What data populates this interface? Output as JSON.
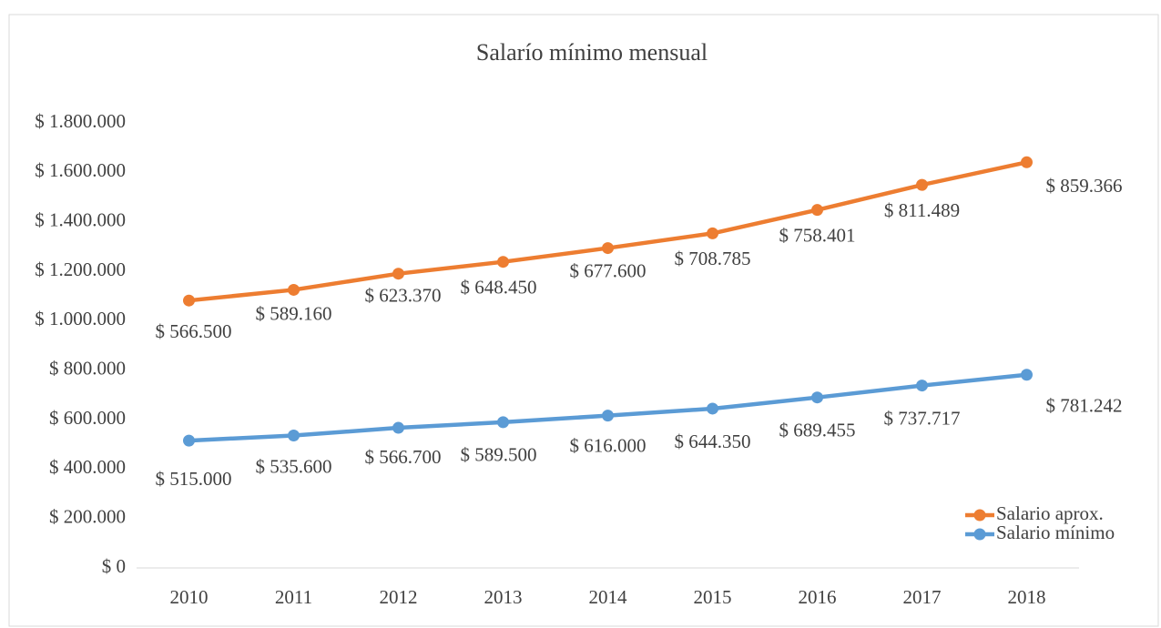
{
  "chart_data": {
    "type": "line",
    "stacked": true,
    "title": "Salarío mínimo mensual",
    "categories": [
      "2010",
      "2011",
      "2012",
      "2013",
      "2014",
      "2015",
      "2016",
      "2017",
      "2018"
    ],
    "series": [
      {
        "name": "Salario mínimo",
        "color": "#5b9bd5",
        "values": [
          515000,
          535600,
          566700,
          589500,
          616000,
          644350,
          689455,
          737717,
          781242
        ],
        "value_labels": [
          "$ 515.000",
          "$ 535.600",
          "$ 566.700",
          "$ 589.500",
          "$ 616.000",
          "$ 644.350",
          "$ 689.455",
          "$ 737.717",
          "$ 781.242"
        ]
      },
      {
        "name": "Salario aprox.",
        "color": "#ed7d31",
        "values": [
          566500,
          589160,
          623370,
          648450,
          677600,
          708785,
          758401,
          811489,
          859366
        ],
        "value_labels": [
          "$ 566.500",
          "$ 589.160",
          "$ 623.370",
          "$ 648.450",
          "$ 677.600",
          "$ 708.785",
          "$ 758.401",
          "$ 811.489",
          "$ 859.366"
        ]
      }
    ],
    "ylim": [
      0,
      1800000
    ],
    "yticks": [
      {
        "value": 0,
        "label": "$ 0"
      },
      {
        "value": 200000,
        "label": "$ 200.000"
      },
      {
        "value": 400000,
        "label": "$ 400.000"
      },
      {
        "value": 600000,
        "label": "$ 600.000"
      },
      {
        "value": 800000,
        "label": "$ 800.000"
      },
      {
        "value": 1000000,
        "label": "$ 1.000.000"
      },
      {
        "value": 1200000,
        "label": "$ 1.200.000"
      },
      {
        "value": 1400000,
        "label": "$ 1.400.000"
      },
      {
        "value": 1600000,
        "label": "$ 1.600.000"
      },
      {
        "value": 1800000,
        "label": "$ 1.800.000"
      }
    ],
    "grid": false,
    "legend": "right"
  }
}
